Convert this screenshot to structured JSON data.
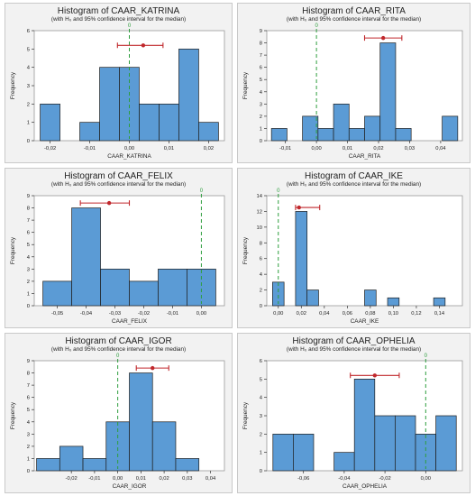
{
  "chart_data": [
    {
      "type": "histogram",
      "title": "Histogram of CAAR_KATRINA",
      "subtitle": "(with H₀ and 95% confidence interval for the median)",
      "xlabel": "CAAR_KATRINA",
      "ylabel": "Frequency",
      "bin_edges": [
        -0.0225,
        -0.0175,
        -0.0125,
        -0.0075,
        -0.0025,
        0.0025,
        0.0075,
        0.0125,
        0.0175,
        0.0225
      ],
      "values": [
        2,
        0,
        1,
        4,
        4,
        2,
        2,
        5,
        1
      ],
      "xlim": [
        -0.024,
        0.024
      ],
      "ylim": [
        0,
        6
      ],
      "xticks": [
        -0.02,
        -0.01,
        0.0,
        0.01,
        0.02
      ],
      "xtick_labels": [
        "-0,02",
        "-0,01",
        "0,00",
        "0,01",
        "0,02"
      ],
      "yticks": [
        0,
        1,
        2,
        3,
        4,
        5,
        6
      ],
      "ytick_labels": [
        "0",
        "1",
        "2",
        "3",
        "4",
        "5",
        "6"
      ],
      "h0": 0.0,
      "h0_label": "0",
      "median": 0.0035,
      "ci": [
        -0.003,
        0.0085
      ],
      "ci_y": 5.2
    },
    {
      "type": "histogram",
      "title": "Histogram of CAAR_RITA",
      "subtitle": "(with H₀ and 95% confidence interval for the median)",
      "xlabel": "CAAR_RITA",
      "ylabel": "Frequency",
      "bin_edges": [
        -0.0145,
        -0.0095,
        -0.0045,
        0.0005,
        0.0055,
        0.0105,
        0.0155,
        0.0205,
        0.0255,
        0.0305,
        0.0355,
        0.0405,
        0.0455
      ],
      "values": [
        1,
        0,
        2,
        1,
        3,
        1,
        2,
        8,
        1,
        0,
        0,
        2
      ],
      "xlim": [
        -0.016,
        0.047
      ],
      "ylim": [
        0,
        9
      ],
      "xticks": [
        -0.01,
        0.0,
        0.01,
        0.02,
        0.03,
        0.04
      ],
      "xtick_labels": [
        "-0,01",
        "0,00",
        "0,01",
        "0,02",
        "0,03",
        "0,04"
      ],
      "yticks": [
        0,
        1,
        2,
        3,
        4,
        5,
        6,
        7,
        8,
        9
      ],
      "ytick_labels": [
        "0",
        "1",
        "2",
        "3",
        "4",
        "5",
        "6",
        "7",
        "8",
        "9"
      ],
      "h0": 0.0,
      "h0_label": "0",
      "median": 0.0215,
      "ci": [
        0.0155,
        0.0275
      ],
      "ci_y": 8.4
    },
    {
      "type": "histogram",
      "title": "Histogram of CAAR_FELIX",
      "subtitle": "(with H₀ and 95% confidence interval for the median)",
      "xlabel": "CAAR_FELIX",
      "ylabel": "Frequency",
      "bin_edges": [
        -0.055,
        -0.045,
        -0.035,
        -0.025,
        -0.015,
        -0.005,
        0.005
      ],
      "values": [
        2,
        8,
        3,
        2,
        3,
        3
      ],
      "xlim": [
        -0.058,
        0.008
      ],
      "ylim": [
        0,
        9
      ],
      "xticks": [
        -0.05,
        -0.04,
        -0.03,
        -0.02,
        -0.01,
        0.0
      ],
      "xtick_labels": [
        "-0,05",
        "-0,04",
        "-0,03",
        "-0,02",
        "-0,01",
        "0,00"
      ],
      "yticks": [
        0,
        1,
        2,
        3,
        4,
        5,
        6,
        7,
        8,
        9
      ],
      "ytick_labels": [
        "0",
        "1",
        "2",
        "3",
        "4",
        "5",
        "6",
        "7",
        "8",
        "9"
      ],
      "h0": 0.0,
      "h0_label": "0",
      "median": -0.032,
      "ci": [
        -0.042,
        -0.025
      ],
      "ci_y": 8.4
    },
    {
      "type": "histogram",
      "title": "Histogram of CAAR_IKE",
      "subtitle": "(with H₀ and 95% confidence interval for the median)",
      "xlabel": "CAAR_IKE",
      "ylabel": "Frequency",
      "bin_edges": [
        -0.005,
        0.005,
        0.015,
        0.025,
        0.035,
        0.045,
        0.055,
        0.065,
        0.075,
        0.085,
        0.095,
        0.105,
        0.115,
        0.125,
        0.135,
        0.145,
        0.155
      ],
      "values": [
        3,
        0,
        12,
        2,
        0,
        0,
        0,
        0,
        2,
        0,
        1,
        0,
        0,
        0,
        1,
        0
      ],
      "xlim": [
        -0.01,
        0.16
      ],
      "ylim": [
        0,
        14
      ],
      "xticks": [
        0.0,
        0.02,
        0.04,
        0.06,
        0.08,
        0.1,
        0.12,
        0.14
      ],
      "xtick_labels": [
        "0,00",
        "0,02",
        "0,04",
        "0,06",
        "0,08",
        "0,10",
        "0,12",
        "0,14"
      ],
      "yticks": [
        0,
        2,
        4,
        6,
        8,
        10,
        12,
        14
      ],
      "ytick_labels": [
        "0",
        "2",
        "4",
        "6",
        "8",
        "10",
        "12",
        "14"
      ],
      "h0": 0.0,
      "h0_label": "0",
      "median": 0.018,
      "ci": [
        0.015,
        0.036
      ],
      "ci_y": 12.5
    },
    {
      "type": "histogram",
      "title": "Histogram of CAAR_IGOR",
      "subtitle": "(with H₀ and 95% confidence interval for the median)",
      "xlabel": "CAAR_IGOR",
      "ylabel": "Frequency",
      "bin_edges": [
        -0.035,
        -0.025,
        -0.015,
        -0.005,
        0.005,
        0.015,
        0.025,
        0.035,
        0.045
      ],
      "values": [
        1,
        2,
        1,
        4,
        8,
        4,
        1,
        0
      ],
      "xlim": [
        -0.036,
        0.046
      ],
      "ylim": [
        0,
        9
      ],
      "xticks": [
        -0.02,
        -0.01,
        0.0,
        0.01,
        0.02,
        0.03,
        0.04
      ],
      "xtick_labels": [
        "-0,02",
        "-0,01",
        "0,00",
        "0,01",
        "0,02",
        "0,03",
        "0,04"
      ],
      "yticks": [
        0,
        1,
        2,
        3,
        4,
        5,
        6,
        7,
        8,
        9
      ],
      "ytick_labels": [
        "0",
        "1",
        "2",
        "3",
        "4",
        "5",
        "6",
        "7",
        "8",
        "9"
      ],
      "h0": 0.0,
      "h0_label": "0",
      "median": 0.015,
      "ci": [
        0.008,
        0.022
      ],
      "ci_y": 8.4
    },
    {
      "type": "histogram",
      "title": "Histogram of CAAR_OPHELIA",
      "subtitle": "(with H₀ and 95% confidence interval for the median)",
      "xlabel": "CAAR_OPHELIA",
      "ylabel": "Frequency",
      "bin_edges": [
        -0.075,
        -0.065,
        -0.055,
        -0.045,
        -0.035,
        -0.025,
        -0.015,
        -0.005,
        0.005,
        0.015
      ],
      "values": [
        2,
        2,
        0,
        1,
        5,
        3,
        3,
        2,
        3
      ],
      "xlim": [
        -0.078,
        0.018
      ],
      "ylim": [
        0,
        6
      ],
      "xticks": [
        -0.06,
        -0.04,
        -0.02,
        0.0
      ],
      "xtick_labels": [
        "-0,06",
        "-0,04",
        "-0,02",
        "0,00"
      ],
      "yticks": [
        0,
        1,
        2,
        3,
        4,
        5,
        6
      ],
      "ytick_labels": [
        "0",
        "1",
        "2",
        "3",
        "4",
        "5",
        "6"
      ],
      "h0": 0.0,
      "h0_label": "0",
      "median": -0.025,
      "ci": [
        -0.037,
        -0.013
      ],
      "ci_y": 5.2
    }
  ],
  "colors": {
    "bar_fill": "#5b9bd5",
    "bar_stroke": "#1f1f1f",
    "h0_line": "#2e9e3e",
    "ci_line": "#c0282c",
    "plot_bg": "#ffffff",
    "panel_bg": "#f2f2f2"
  }
}
